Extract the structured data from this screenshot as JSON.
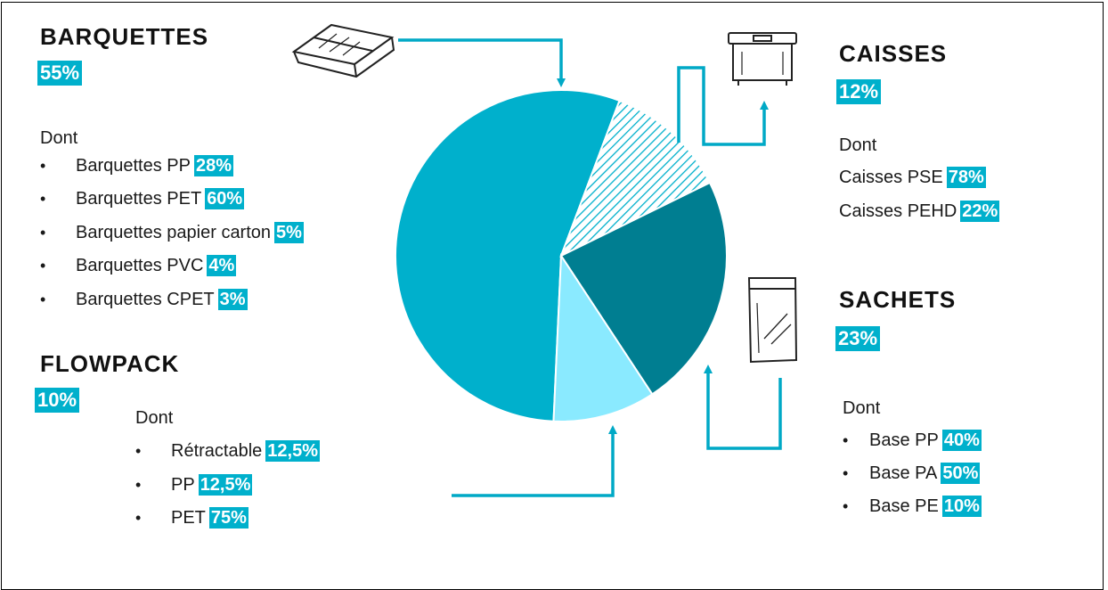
{
  "chart_data": {
    "type": "pie",
    "slices": [
      {
        "label": "BARQUETTES",
        "value": 55,
        "color": "#00b0cc"
      },
      {
        "label": "CAISSES",
        "value": 12,
        "color": "#00b0cc",
        "pattern": "hatched"
      },
      {
        "label": "SACHETS",
        "value": 23,
        "color": "#007e91"
      },
      {
        "label": "FLOWPACK",
        "value": 10,
        "color": "#8aeaff"
      }
    ]
  },
  "barquettes": {
    "title": "BARQUETTES",
    "pct": "55%",
    "dont": "Dont",
    "items": [
      {
        "label": "Barquettes PP",
        "pct": "28%"
      },
      {
        "label": "Barquettes PET",
        "pct": "60%"
      },
      {
        "label": "Barquettes papier carton",
        "pct": "5%"
      },
      {
        "label": "Barquettes PVC",
        "pct": "4%"
      },
      {
        "label": "Barquettes CPET",
        "pct": "3%"
      }
    ]
  },
  "flowpack": {
    "title": "FLOWPACK",
    "pct": "10%",
    "dont": "Dont",
    "items": [
      {
        "label": "Rétractable",
        "pct": "12,5%"
      },
      {
        "label": "PP",
        "pct": "12,5%"
      },
      {
        "label": "PET",
        "pct": "75%"
      }
    ]
  },
  "caisses": {
    "title": "CAISSES",
    "pct": "12%",
    "dont": "Dont",
    "items": [
      {
        "label": "Caisses PSE",
        "pct": "78%"
      },
      {
        "label": "Caisses PEHD",
        "pct": "22%"
      }
    ]
  },
  "sachets": {
    "title": "SACHETS",
    "pct": "23%",
    "dont": "Dont",
    "items": [
      {
        "label": "Base PP",
        "pct": "40%"
      },
      {
        "label": "Base PA",
        "pct": "50%"
      },
      {
        "label": "Base PE",
        "pct": "10%"
      }
    ]
  },
  "bullet_char": "•",
  "icons": {
    "tray": "tray-icon",
    "box": "box-icon",
    "bag": "bag-icon"
  },
  "colors": {
    "accent": "#00b0cc",
    "dark": "#007e91",
    "light": "#8aeaff",
    "arrow": "#00a9c6"
  }
}
